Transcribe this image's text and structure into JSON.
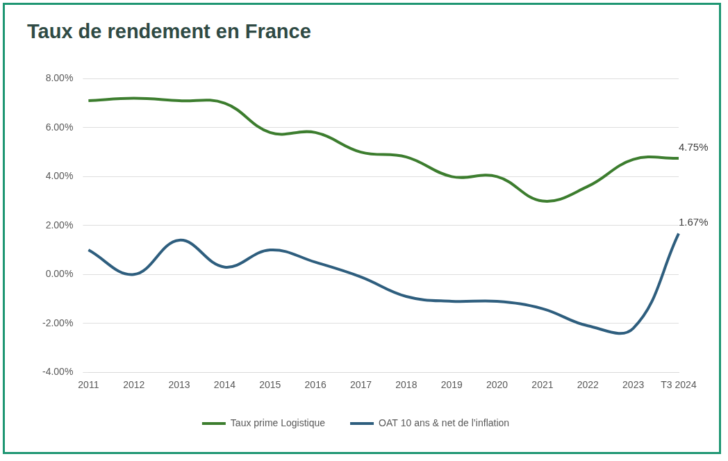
{
  "chart_data": {
    "type": "line",
    "title": "Taux de rendement en France",
    "categories": [
      "2011",
      "2012",
      "2013",
      "2014",
      "2015",
      "2016",
      "2017",
      "2018",
      "2019",
      "2020",
      "2021",
      "2022",
      "2023",
      "T3 2024"
    ],
    "series": [
      {
        "name": "Taux prime Logistique",
        "color": "#3c7d2e",
        "values": [
          7.1,
          7.2,
          7.1,
          7.0,
          5.8,
          5.8,
          5.0,
          4.8,
          4.0,
          4.0,
          3.0,
          3.6,
          4.7,
          4.75
        ],
        "value_labels": [
          null,
          null,
          null,
          null,
          null,
          null,
          null,
          null,
          null,
          null,
          null,
          null,
          null,
          "4.75%"
        ]
      },
      {
        "name": "OAT 10 ans & net de l’inflation",
        "color": "#2e5e7e",
        "values": [
          1.0,
          0.0,
          1.4,
          0.3,
          1.0,
          0.5,
          -0.1,
          -0.9,
          -1.1,
          -1.1,
          -1.4,
          -2.1,
          -2.2,
          1.67
        ],
        "value_labels": [
          null,
          null,
          null,
          null,
          null,
          null,
          null,
          null,
          null,
          null,
          null,
          null,
          null,
          "1.67%"
        ]
      }
    ],
    "ylim": [
      -4,
      8
    ],
    "yticks": [
      {
        "value": -4,
        "label": "-4.00%"
      },
      {
        "value": -2,
        "label": "-2.00%"
      },
      {
        "value": 0,
        "label": "0.00%"
      },
      {
        "value": 2,
        "label": "2.00%"
      },
      {
        "value": 4,
        "label": "4.00%"
      },
      {
        "value": 6,
        "label": "6.00%"
      },
      {
        "value": 8,
        "label": "8.00%"
      }
    ],
    "grid": true,
    "legend": "bottom"
  }
}
